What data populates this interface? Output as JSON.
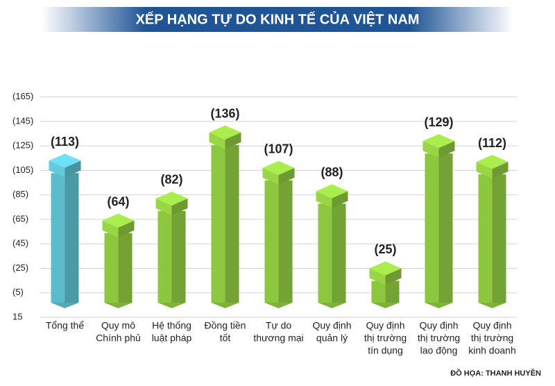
{
  "chart_data": {
    "type": "bar",
    "title": "XẾP HẠNG TỰ DO KINH TẾ CỦA VIỆT NAM",
    "credit": "ĐỒ HỌA: THANH HUYỀN",
    "categories": [
      [
        "Tổng thể"
      ],
      [
        "Quy mô",
        "Chính phủ"
      ],
      [
        "Hệ thống",
        "luật pháp"
      ],
      [
        "Đồng tiền",
        "tốt"
      ],
      [
        "Tự do",
        "thương mại"
      ],
      [
        "Quy định",
        "quản lý"
      ],
      [
        "Quy định",
        "thị trường",
        "tín dụng"
      ],
      [
        "Quy định",
        "thị trường",
        "lao động"
      ],
      [
        "Quy định",
        "thị trường",
        "kinh doanh"
      ]
    ],
    "values": [
      113,
      64,
      82,
      136,
      107,
      88,
      25,
      129,
      112
    ],
    "value_labels": [
      "(113)",
      "(64)",
      "(82)",
      "(136)",
      "(107)",
      "(88)",
      "(25)",
      "(129)",
      "(112)"
    ],
    "colors": [
      "#5cbccb",
      "#8dc63f",
      "#8dc63f",
      "#8dc63f",
      "#8dc63f",
      "#8dc63f",
      "#8dc63f",
      "#8dc63f",
      "#8dc63f"
    ],
    "ylim": [
      -15,
      175
    ],
    "yticks": [
      {
        "value": 165,
        "label": "(165)"
      },
      {
        "value": 145,
        "label": "(145)"
      },
      {
        "value": 125,
        "label": "(125)"
      },
      {
        "value": 105,
        "label": "(105)"
      },
      {
        "value": 85,
        "label": "(85)"
      },
      {
        "value": 65,
        "label": "(65)"
      },
      {
        "value": 45,
        "label": "(45)"
      },
      {
        "value": 25,
        "label": "(25)"
      },
      {
        "value": 5,
        "label": "(5)"
      },
      {
        "value": -15,
        "label": "15"
      }
    ],
    "grid": true
  }
}
